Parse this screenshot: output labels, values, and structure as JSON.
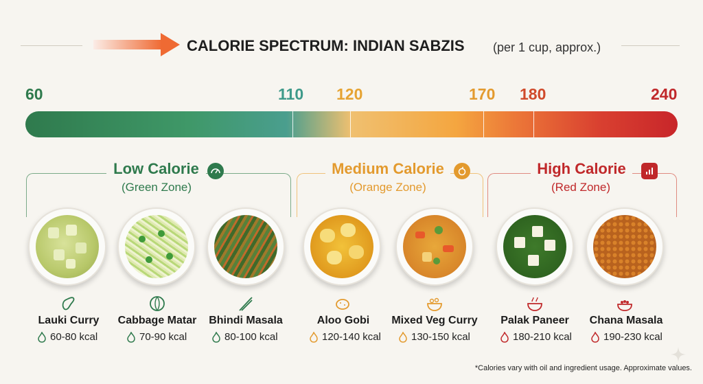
{
  "header": {
    "title": "CALORIE SPECTRUM: INDIAN SABZIS",
    "subtitle": "(per 1 cup, approx.)",
    "accent_gradient": [
      "#f8e4dc",
      "#f0733b"
    ]
  },
  "scale": {
    "ticks": [
      {
        "label": "60",
        "color": "#2f7a4d"
      },
      {
        "label": "110",
        "color": "#3f9a8a"
      },
      {
        "label": "120",
        "color": "#e6a332"
      },
      {
        "label": "170",
        "color": "#e39a2e"
      },
      {
        "label": "180",
        "color": "#d04a2b"
      },
      {
        "label": "240",
        "color": "#c0282a"
      }
    ]
  },
  "zones": {
    "low": {
      "title": "Low Calorie",
      "subtitle": "(Green Zone)",
      "color": "#2f7a4d",
      "icon": "gauge-icon"
    },
    "medium": {
      "title": "Medium Calorie",
      "subtitle": "(Orange Zone)",
      "color": "#e39a2e",
      "icon": "apple-icon"
    },
    "high": {
      "title": "High Calorie",
      "subtitle": "(Red Zone)",
      "color": "#c0282a",
      "icon": "bar-chart-icon"
    }
  },
  "dishes": [
    {
      "name": "Lauki Curry",
      "kcal": "60-80 kcal",
      "zone": "low",
      "icon": "gourd-icon"
    },
    {
      "name": "Cabbage Matar",
      "kcal": "70-90 kcal",
      "zone": "low",
      "icon": "cabbage-icon"
    },
    {
      "name": "Bhindi Masala",
      "kcal": "80-100 kcal",
      "zone": "low",
      "icon": "okra-icon"
    },
    {
      "name": "Aloo Gobi",
      "kcal": "120-140 kcal",
      "zone": "medium",
      "icon": "potato-icon"
    },
    {
      "name": "Mixed Veg Curry",
      "kcal": "130-150 kcal",
      "zone": "medium",
      "icon": "veg-bowl-icon"
    },
    {
      "name": "Palak Paneer",
      "kcal": "180-210 kcal",
      "zone": "high",
      "icon": "bowl-icon"
    },
    {
      "name": "Chana Masala",
      "kcal": "190-230 kcal",
      "zone": "high",
      "icon": "chickpea-bowl-icon"
    }
  ],
  "footnote": "*Calories vary with oil and ingredient usage. Approximate values."
}
